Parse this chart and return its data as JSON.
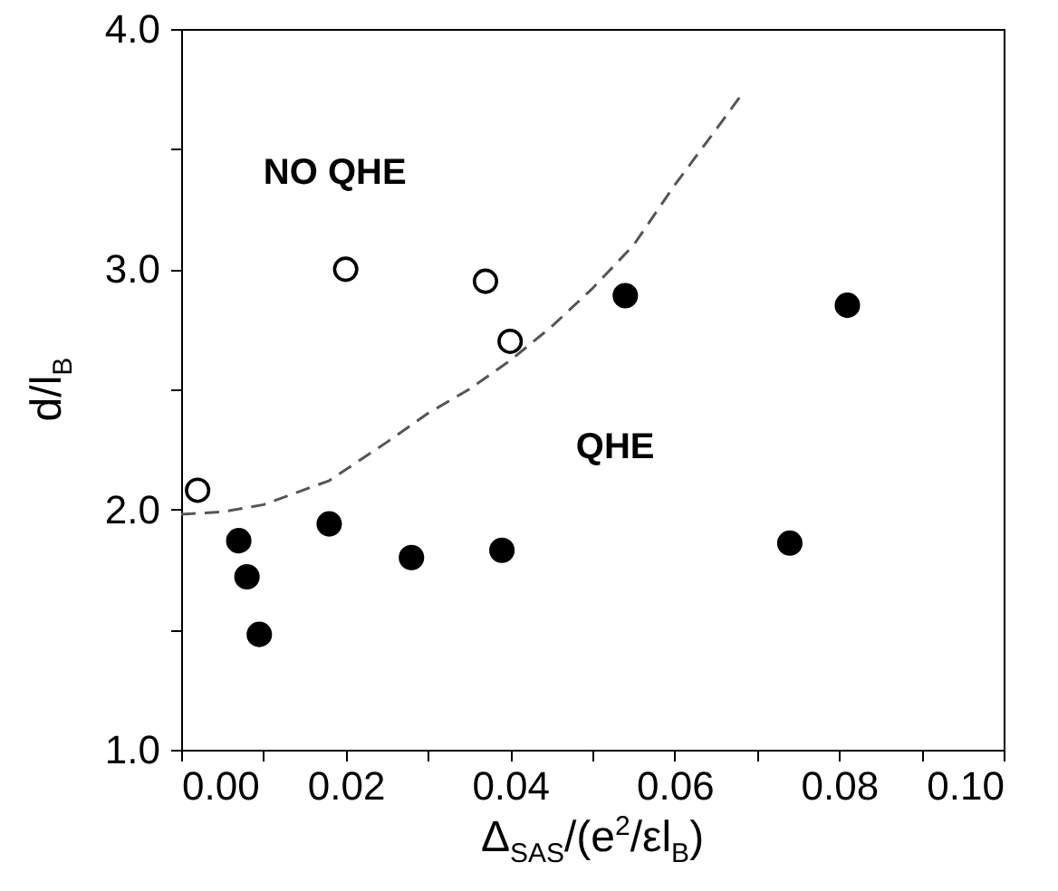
{
  "chart_data": {
    "type": "scatter",
    "xlabel": "Δ$_{SAS}$/(e$^{2}$/εl$_{B}$)",
    "ylabel": "d/l$_{B}$",
    "annotations": [
      "NO QHE",
      "QHE"
    ],
    "xlim": [
      0,
      0.1
    ],
    "ylim": [
      1,
      4
    ],
    "xticks": [
      {
        "value": 0,
        "label": "0.00"
      },
      {
        "value": 0.01,
        "label": null
      },
      {
        "value": 0.02,
        "label": "0.02"
      },
      {
        "value": 0.03,
        "label": null
      },
      {
        "value": 0.04,
        "label": "0.04"
      },
      {
        "value": 0.05,
        "label": null
      },
      {
        "value": 0.06,
        "label": "0.06"
      },
      {
        "value": 0.07,
        "label": null
      },
      {
        "value": 0.08,
        "label": "0.08"
      },
      {
        "value": 0.09,
        "label": null
      },
      {
        "value": 0.1,
        "label": "0.10"
      }
    ],
    "yticks": [
      {
        "value": 1,
        "label": "1.0"
      },
      {
        "value": 1.5,
        "label": null
      },
      {
        "value": 2,
        "label": "2.0"
      },
      {
        "value": 2.5,
        "label": null
      },
      {
        "value": 3,
        "label": "3.0"
      },
      {
        "value": 3.5,
        "label": null
      },
      {
        "value": 4,
        "label": "4.0"
      }
    ],
    "grid": false,
    "series": [
      {
        "marker": "circle",
        "color": "#ffffff",
        "x": [
          0.002,
          0.02,
          0.037,
          0.04
        ],
        "values": [
          2.08,
          3.0,
          2.95,
          2.7
        ]
      },
      {
        "marker": "circle",
        "color": "#000000",
        "x": [
          0.007,
          0.008,
          0.0095,
          0.018,
          0.028,
          0.039,
          0.054,
          0.074,
          0.081
        ],
        "values": [
          1.87,
          1.72,
          1.48,
          1.94,
          1.8,
          1.83,
          2.89,
          1.86,
          2.85
        ]
      },
      {
        "type": "line",
        "color": "#555555",
        "line_style": "dashed",
        "x": [
          0,
          0.005,
          0.01,
          0.018,
          0.025,
          0.03,
          0.035,
          0.04,
          0.045,
          0.05,
          0.055,
          0.06,
          0.065,
          0.068
        ],
        "values": [
          1.98,
          1.99,
          2.02,
          2.12,
          2.28,
          2.4,
          2.5,
          2.62,
          2.76,
          2.92,
          3.1,
          3.35,
          3.58,
          3.72
        ]
      }
    ]
  }
}
